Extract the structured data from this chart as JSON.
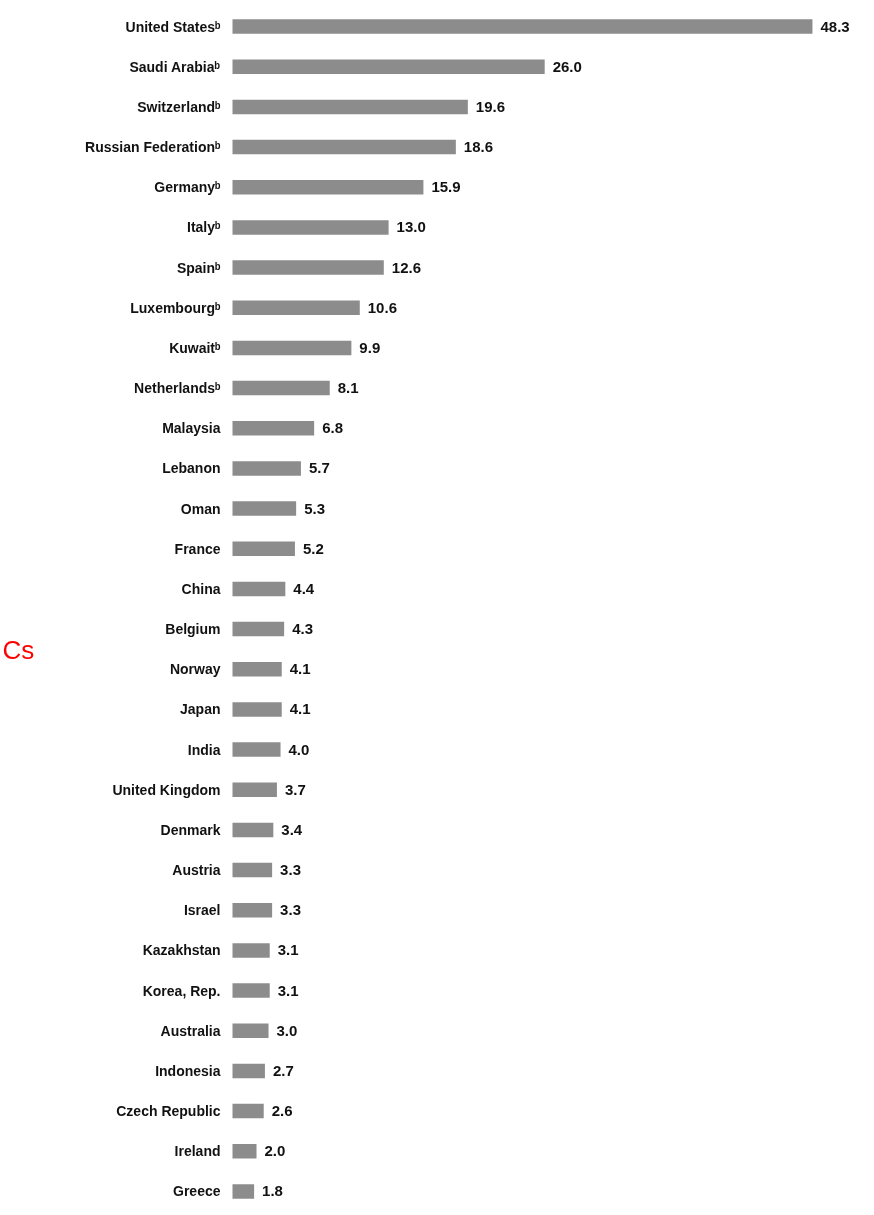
{
  "chart_data": {
    "type": "bar",
    "orientation": "horizontal",
    "grid": false,
    "categories": [
      "United Statesᵇ",
      "Saudi Arabiaᵇ",
      "Switzerlandᵇ",
      "Russian Federationᵇ",
      "Germanyᵇ",
      "Italyᵇ",
      "Spainᵇ",
      "Luxembourgᵇ",
      "Kuwaitᵇ",
      "Netherlandsᵇ",
      "Malaysia",
      "Lebanon",
      "Oman",
      "France",
      "China",
      "Belgium",
      "Norway",
      "Japan",
      "India",
      "United Kingdom",
      "Denmark",
      "Austria",
      "Israel",
      "Kazakhstan",
      "Korea, Rep.",
      "Australia",
      "Indonesia",
      "Czech Republic",
      "Ireland",
      "Greece"
    ],
    "values": [
      48.3,
      26.0,
      19.6,
      18.6,
      15.9,
      13.0,
      12.6,
      10.6,
      9.9,
      8.1,
      6.8,
      5.7,
      5.3,
      5.2,
      4.4,
      4.3,
      4.1,
      4.1,
      4.0,
      3.7,
      3.4,
      3.3,
      3.3,
      3.1,
      3.1,
      3.0,
      2.7,
      2.6,
      2.0,
      1.8
    ],
    "value_labels": [
      "48.3",
      "26.0",
      "19.6",
      "18.6",
      "15.9",
      "13.0",
      "12.6",
      "10.6",
      "9.9",
      "8.1",
      "6.8",
      "5.7",
      "5.3",
      "5.2",
      "4.4",
      "4.3",
      "4.1",
      "4.1",
      "4.0",
      "3.7",
      "3.4",
      "3.3",
      "3.3",
      "3.1",
      "3.1",
      "3.0",
      "2.7",
      "2.6",
      "2.0",
      "1.8"
    ],
    "color": "#8c8c8c",
    "annotations": [
      "Cs"
    ]
  }
}
